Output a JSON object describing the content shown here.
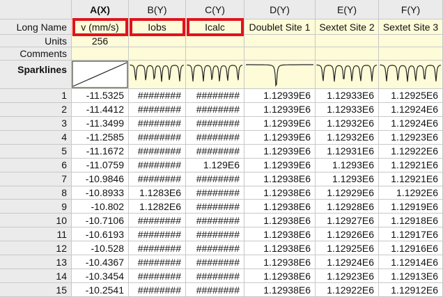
{
  "sheet": {
    "columns": [
      {
        "name": "A(X)",
        "long_name": "v (mm/s)",
        "units": "256"
      },
      {
        "name": "B(Y)",
        "long_name": "Iobs"
      },
      {
        "name": "C(Y)",
        "long_name": "Icalc"
      },
      {
        "name": "D(Y)",
        "long_name": "Doublet Site 1"
      },
      {
        "name": "E(Y)",
        "long_name": "Sextet Site 2"
      },
      {
        "name": "F(Y)",
        "long_name": "Sextet Site 3"
      }
    ],
    "row_labels": {
      "long_name": "Long Name",
      "units": "Units",
      "comments": "Comments",
      "sparklines": "Sparklines"
    },
    "rows": [
      {
        "index": "1",
        "cells": [
          "-11.5325",
          "########",
          "########",
          "1.12939E6",
          "1.12933E6",
          "1.12925E6"
        ]
      },
      {
        "index": "2",
        "cells": [
          "-11.4412",
          "########",
          "########",
          "1.12939E6",
          "1.12933E6",
          "1.12924E6"
        ]
      },
      {
        "index": "3",
        "cells": [
          "-11.3499",
          "########",
          "########",
          "1.12939E6",
          "1.12932E6",
          "1.12924E6"
        ]
      },
      {
        "index": "4",
        "cells": [
          "-11.2585",
          "########",
          "########",
          "1.12939E6",
          "1.12932E6",
          "1.12923E6"
        ]
      },
      {
        "index": "5",
        "cells": [
          "-11.1672",
          "########",
          "########",
          "1.12939E6",
          "1.12931E6",
          "1.12922E6"
        ]
      },
      {
        "index": "6",
        "cells": [
          "-11.0759",
          "########",
          "1.129E6",
          "1.12939E6",
          "1.1293E6",
          "1.12921E6"
        ]
      },
      {
        "index": "7",
        "cells": [
          "-10.9846",
          "########",
          "########",
          "1.12938E6",
          "1.1293E6",
          "1.12921E6"
        ]
      },
      {
        "index": "8",
        "cells": [
          "-10.8933",
          "1.1283E6",
          "########",
          "1.12938E6",
          "1.12929E6",
          "1.1292E6"
        ]
      },
      {
        "index": "9",
        "cells": [
          "-10.802",
          "1.1282E6",
          "########",
          "1.12938E6",
          "1.12928E6",
          "1.12919E6"
        ]
      },
      {
        "index": "10",
        "cells": [
          "-10.7106",
          "########",
          "########",
          "1.12938E6",
          "1.12927E6",
          "1.12918E6"
        ]
      },
      {
        "index": "11",
        "cells": [
          "-10.6193",
          "########",
          "########",
          "1.12938E6",
          "1.12926E6",
          "1.12917E6"
        ]
      },
      {
        "index": "12",
        "cells": [
          "-10.528",
          "########",
          "########",
          "1.12938E6",
          "1.12925E6",
          "1.12916E6"
        ]
      },
      {
        "index": "13",
        "cells": [
          "-10.4367",
          "########",
          "########",
          "1.12938E6",
          "1.12924E6",
          "1.12914E6"
        ]
      },
      {
        "index": "14",
        "cells": [
          "-10.3454",
          "########",
          "########",
          "1.12938E6",
          "1.12923E6",
          "1.12913E6"
        ]
      },
      {
        "index": "15",
        "cells": [
          "-10.2541",
          "########",
          "########",
          "1.12938E6",
          "1.12922E6",
          "1.12912E6"
        ]
      }
    ]
  }
}
